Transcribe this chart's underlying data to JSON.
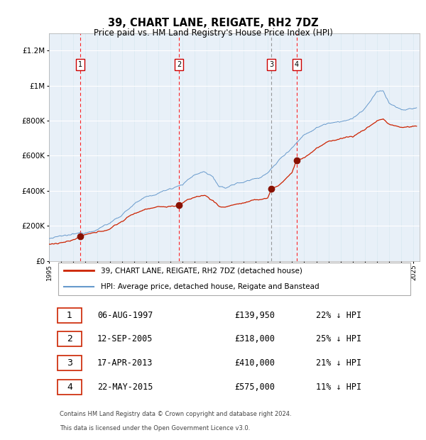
{
  "title": "39, CHART LANE, REIGATE, RH2 7DZ",
  "subtitle": "Price paid vs. HM Land Registry's House Price Index (HPI)",
  "footer1": "Contains HM Land Registry data © Crown copyright and database right 2024.",
  "footer2": "This data is licensed under the Open Government Licence v3.0.",
  "legend_red": "39, CHART LANE, REIGATE, RH2 7DZ (detached house)",
  "legend_blue": "HPI: Average price, detached house, Reigate and Banstead",
  "transactions": [
    {
      "num": 1,
      "date": "06-AUG-1997",
      "price": 139950,
      "pct": "22% ↓ HPI"
    },
    {
      "num": 2,
      "date": "12-SEP-2005",
      "price": 318000,
      "pct": "25% ↓ HPI"
    },
    {
      "num": 3,
      "date": "17-APR-2013",
      "price": 410000,
      "pct": "21% ↓ HPI"
    },
    {
      "num": 4,
      "date": "22-MAY-2015",
      "price": 575000,
      "pct": "11% ↓ HPI"
    }
  ],
  "transaction_dates_decimal": [
    1997.58,
    2005.7,
    2013.29,
    2015.38
  ],
  "transaction_prices": [
    139950,
    318000,
    410000,
    575000
  ],
  "plot_bg": "#e8f0f8",
  "red_color": "#cc2200",
  "blue_color": "#6699cc",
  "grid_color": "#ffffff",
  "marker_color": "#881100",
  "ylim": [
    0,
    1300000
  ],
  "xlim_start": 1995.0,
  "xlim_end": 2025.5
}
